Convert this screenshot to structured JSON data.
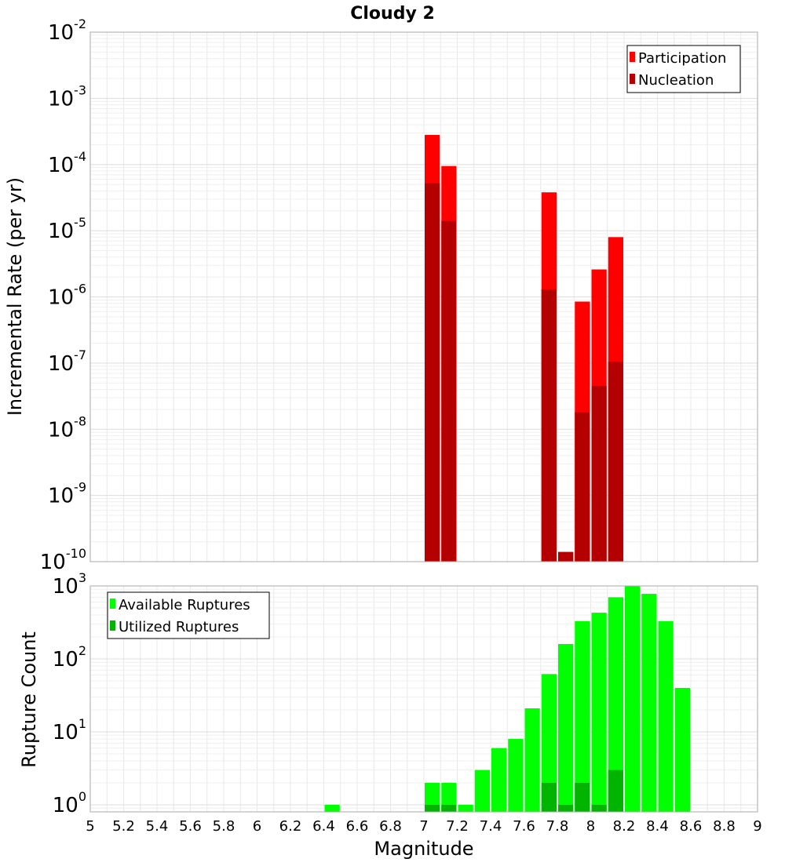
{
  "chart_data": [
    {
      "type": "bar",
      "title": "Cloudy 2",
      "xlabel": "",
      "ylabel": "Incremental Rate (per yr)",
      "yscale": "log",
      "ylim": [
        1e-10,
        0.01
      ],
      "xlim": [
        5,
        9
      ],
      "bar_width": 0.1,
      "y_ticks": [
        {
          "base": "10",
          "exp": "-10"
        },
        {
          "base": "10",
          "exp": "-9"
        },
        {
          "base": "10",
          "exp": "-8"
        },
        {
          "base": "10",
          "exp": "-7"
        },
        {
          "base": "10",
          "exp": "-6"
        },
        {
          "base": "10",
          "exp": "-5"
        },
        {
          "base": "10",
          "exp": "-4"
        },
        {
          "base": "10",
          "exp": "-3"
        },
        {
          "base": "10",
          "exp": "-2"
        }
      ],
      "legend_position": "top-right",
      "series": [
        {
          "name": "Participation",
          "color": "#ff0000",
          "points": [
            [
              7.05,
              0.00028
            ],
            [
              7.15,
              9.5e-05
            ],
            [
              7.75,
              3.8e-05
            ],
            [
              7.85,
              1.4e-10
            ],
            [
              7.95,
              8.5e-07
            ],
            [
              8.05,
              2.6e-06
            ],
            [
              8.15,
              8e-06
            ]
          ]
        },
        {
          "name": "Nucleation",
          "color": "#b40000",
          "points": [
            [
              7.05,
              5.2e-05
            ],
            [
              7.15,
              1.4e-05
            ],
            [
              7.75,
              1.3e-06
            ],
            [
              7.85,
              1.4e-10
            ],
            [
              7.95,
              1.8e-08
            ],
            [
              8.05,
              4.5e-08
            ],
            [
              8.15,
              1.05e-07
            ]
          ]
        }
      ]
    },
    {
      "type": "bar",
      "title": "",
      "xlabel": "Magnitude",
      "ylabel": "Rupture Count",
      "yscale": "log",
      "ylim": [
        0.8,
        1000
      ],
      "xlim": [
        5,
        9
      ],
      "bar_width": 0.1,
      "y_ticks": [
        {
          "value": 1,
          "base": "10",
          "exp": "0"
        },
        {
          "value": 10,
          "base": "10",
          "exp": "1"
        },
        {
          "value": 100,
          "base": "10",
          "exp": "2"
        },
        {
          "value": 1000,
          "base": "10",
          "exp": "3"
        }
      ],
      "x_ticks": [
        "5",
        "5.2",
        "5.4",
        "5.6",
        "5.8",
        "6",
        "6.2",
        "6.4",
        "6.6",
        "6.8",
        "7",
        "7.2",
        "7.4",
        "7.6",
        "7.8",
        "8",
        "8.2",
        "8.4",
        "8.6",
        "8.8",
        "9"
      ],
      "legend_position": "top-left",
      "series": [
        {
          "name": "Available Ruptures",
          "color": "#00ff00",
          "points": [
            [
              6.45,
              1
            ],
            [
              7.05,
              2
            ],
            [
              7.15,
              2
            ],
            [
              7.25,
              1
            ],
            [
              7.35,
              3
            ],
            [
              7.45,
              6
            ],
            [
              7.55,
              8
            ],
            [
              7.65,
              21
            ],
            [
              7.75,
              62
            ],
            [
              7.85,
              160
            ],
            [
              7.95,
              330
            ],
            [
              8.05,
              430
            ],
            [
              8.15,
              700
            ],
            [
              8.25,
              1000
            ],
            [
              8.35,
              780
            ],
            [
              8.45,
              330
            ],
            [
              8.55,
              40
            ]
          ]
        },
        {
          "name": "Utilized Ruptures",
          "color": "#00b400",
          "points": [
            [
              7.05,
              1
            ],
            [
              7.15,
              1
            ],
            [
              7.75,
              2
            ],
            [
              7.85,
              1
            ],
            [
              7.95,
              2
            ],
            [
              8.05,
              1
            ],
            [
              8.15,
              3
            ]
          ]
        }
      ]
    }
  ]
}
